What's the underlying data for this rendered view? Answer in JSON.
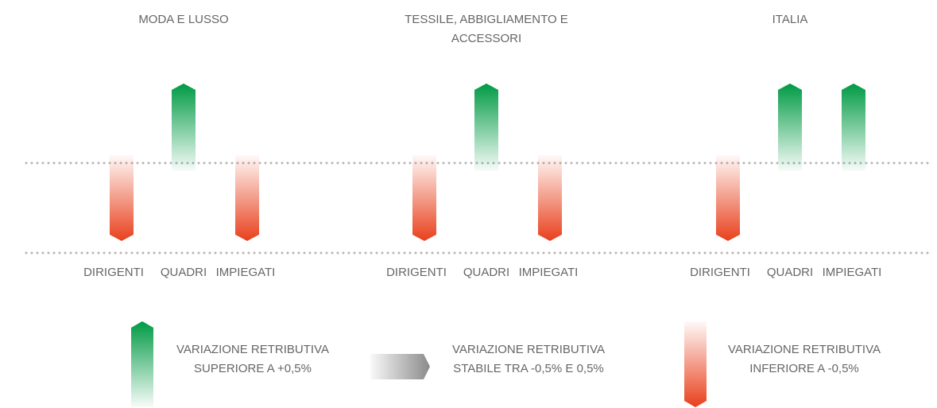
{
  "groups": [
    {
      "title": [
        "MODA E LUSSO"
      ],
      "items": [
        {
          "label": "DIRIGENTI",
          "trend": "down"
        },
        {
          "label": "QUADRI",
          "trend": "up"
        },
        {
          "label": "IMPIEGATI",
          "trend": "down"
        }
      ]
    },
    {
      "title": [
        "TESSILE, ABBIGLIAMENTO E",
        "ACCESSORI"
      ],
      "items": [
        {
          "label": "DIRIGENTI",
          "trend": "down"
        },
        {
          "label": "QUADRI",
          "trend": "up"
        },
        {
          "label": "IMPIEGATI",
          "trend": "down"
        }
      ]
    },
    {
      "title": [
        "ITALIA"
      ],
      "items": [
        {
          "label": "DIRIGENTI",
          "trend": "down"
        },
        {
          "label": "QUADRI",
          "trend": "up"
        },
        {
          "label": "IMPIEGATI",
          "trend": "up"
        }
      ]
    }
  ],
  "legend": [
    {
      "trend": "up",
      "label": [
        "VARIAZIONE RETRIBUTIVA",
        "SUPERIORE A +0,5%"
      ]
    },
    {
      "trend": "stable",
      "label": [
        "VARIAZIONE RETRIBUTIVA",
        "STABILE TRA -0,5% E 0,5%"
      ]
    },
    {
      "trend": "down",
      "label": [
        "VARIAZIONE RETRIBUTIVA",
        "INFERIORE A -0,5%"
      ]
    }
  ]
}
